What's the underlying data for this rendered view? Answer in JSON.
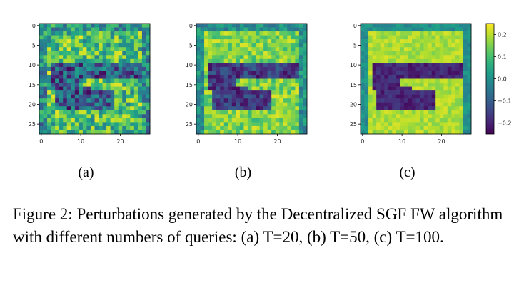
{
  "chart_data": [
    {
      "type": "heatmap",
      "label": "(a)",
      "rows": 28,
      "cols": 28,
      "xticks": [
        "0",
        "10",
        "20"
      ],
      "yticks": [
        "0",
        "5",
        "10",
        "15",
        "20",
        "25"
      ],
      "zlim": [
        -0.25,
        0.25
      ],
      "pattern_strength": 0.45
    },
    {
      "type": "heatmap",
      "label": "(b)",
      "rows": 28,
      "cols": 28,
      "xticks": [
        "0",
        "10",
        "20"
      ],
      "yticks": [
        "0",
        "5",
        "10",
        "15",
        "20",
        "25"
      ],
      "zlim": [
        -0.25,
        0.25
      ],
      "pattern_strength": 0.7
    },
    {
      "type": "heatmap",
      "label": "(c)",
      "rows": 28,
      "cols": 28,
      "xticks": [
        "0",
        "10",
        "20"
      ],
      "yticks": [
        "0",
        "5",
        "10",
        "15",
        "20",
        "25"
      ],
      "zlim": [
        -0.25,
        0.25
      ],
      "pattern_strength": 0.85
    }
  ],
  "colorbar": {
    "ticks": [
      "0.2",
      "0.1",
      "0.0",
      "−0.1",
      "−0.2"
    ],
    "tick_values": [
      0.2,
      0.1,
      0.0,
      -0.1,
      -0.2
    ],
    "range": [
      -0.25,
      0.25
    ],
    "colormap": "viridis"
  },
  "caption": {
    "label": "Figure 2:",
    "text": "Perturbations generated by the Decentralized SGF FW algorithm with different numbers of queries: (a) T=20, (b) T=50, (c) T=100."
  }
}
